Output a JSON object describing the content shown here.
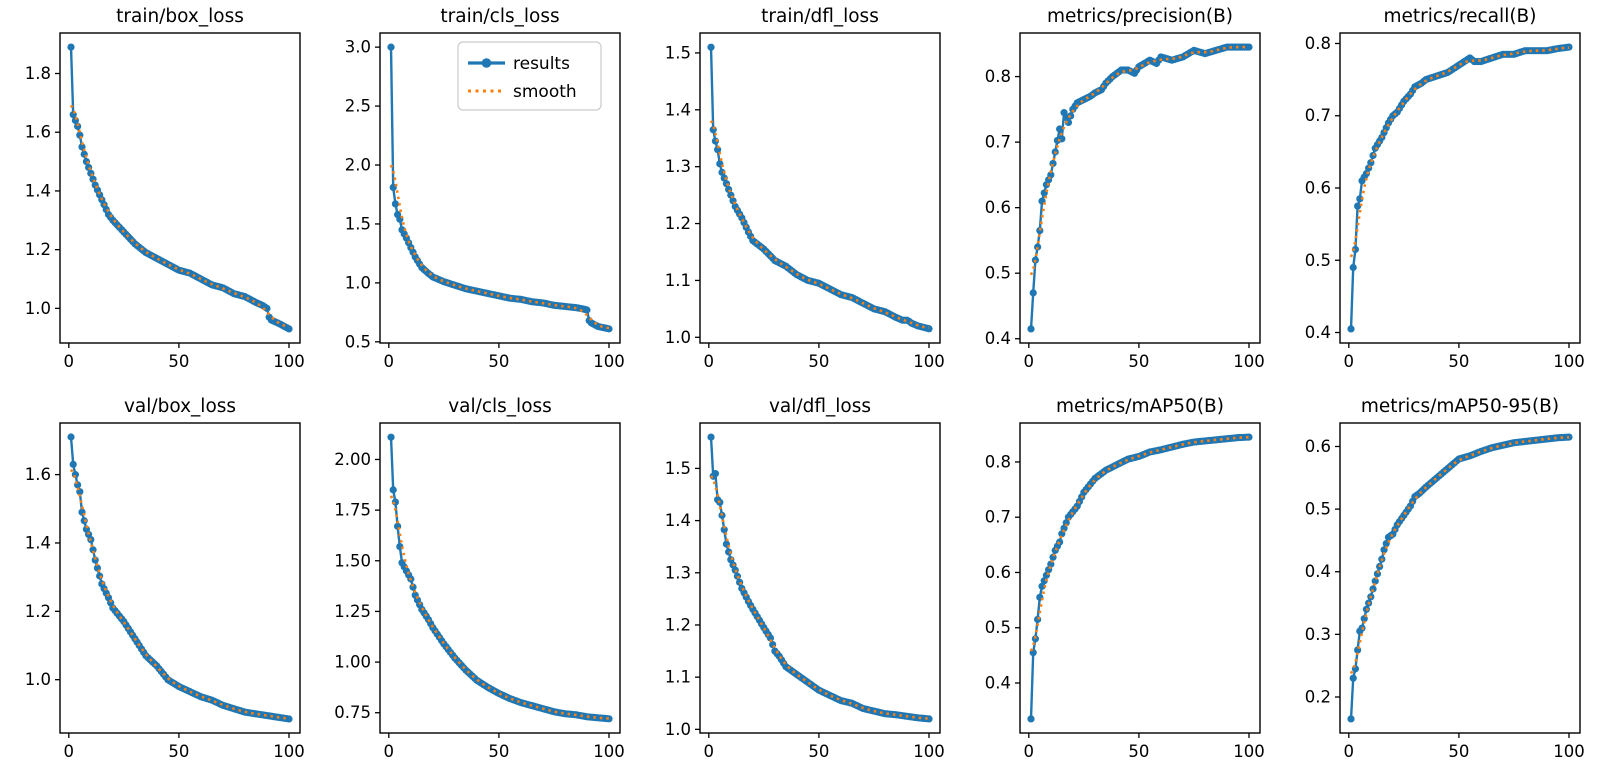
{
  "figure": {
    "background": "#ffffff",
    "results_color": "#1f77b4",
    "smooth_color": "#ff7f0e",
    "spine_color": "#000000",
    "legend": {
      "entries": [
        {
          "label": "results",
          "style": "solid_line_with_circle_marker",
          "color": "#1f77b4"
        },
        {
          "label": "smooth",
          "style": "dotted",
          "color": "#ff7f0e"
        }
      ],
      "position": "upper-right-of-train-cls-loss-subplot"
    }
  },
  "chart_data": [
    {
      "type": "line",
      "title": "train/box_loss",
      "row": 0,
      "col": 0,
      "xlim": [
        -4,
        105
      ],
      "ylim": [
        0.882,
        1.938
      ],
      "xticks": [
        0,
        50,
        100
      ],
      "xtick_labels": [
        "0",
        "50",
        "100"
      ],
      "yticks": [
        1.0,
        1.2,
        1.4,
        1.6,
        1.8
      ],
      "ytick_labels": [
        "1.0",
        "1.2",
        "1.4",
        "1.6",
        "1.8"
      ],
      "legend": false,
      "series": [
        {
          "name": "results",
          "x": [
            1,
            2,
            3,
            4,
            5,
            6,
            8,
            10,
            12,
            15,
            18,
            20,
            25,
            30,
            35,
            40,
            45,
            50,
            55,
            60,
            65,
            70,
            75,
            80,
            85,
            88,
            90,
            91,
            92,
            95,
            100
          ],
          "y": [
            1.89,
            1.66,
            1.64,
            1.62,
            1.59,
            1.55,
            1.5,
            1.46,
            1.42,
            1.37,
            1.32,
            1.3,
            1.26,
            1.22,
            1.19,
            1.17,
            1.15,
            1.13,
            1.12,
            1.1,
            1.08,
            1.07,
            1.05,
            1.04,
            1.02,
            1.01,
            1.0,
            0.97,
            0.96,
            0.95,
            0.93
          ]
        },
        {
          "name": "smooth",
          "derived_from": "results",
          "smoothing": "gaussian_sigma_3"
        }
      ]
    },
    {
      "type": "line",
      "title": "train/cls_loss",
      "row": 0,
      "col": 1,
      "xlim": [
        -4,
        105
      ],
      "ylim": [
        0.49,
        3.12
      ],
      "xticks": [
        0,
        50,
        100
      ],
      "xtick_labels": [
        "0",
        "50",
        "100"
      ],
      "yticks": [
        0.5,
        1.0,
        1.5,
        2.0,
        2.5,
        3.0
      ],
      "ytick_labels": [
        "0.5",
        "1.0",
        "1.5",
        "2.0",
        "2.5",
        "3.0"
      ],
      "legend": true,
      "series": [
        {
          "name": "results",
          "x": [
            1,
            2,
            3,
            4,
            5,
            6,
            8,
            10,
            12,
            15,
            18,
            20,
            25,
            30,
            35,
            40,
            45,
            50,
            55,
            60,
            65,
            70,
            75,
            80,
            85,
            88,
            90,
            91,
            92,
            95,
            100
          ],
          "y": [
            3.0,
            1.81,
            1.67,
            1.58,
            1.54,
            1.45,
            1.38,
            1.3,
            1.22,
            1.13,
            1.08,
            1.05,
            1.01,
            0.98,
            0.95,
            0.93,
            0.91,
            0.89,
            0.87,
            0.86,
            0.84,
            0.83,
            0.81,
            0.8,
            0.79,
            0.78,
            0.77,
            0.68,
            0.66,
            0.63,
            0.61
          ]
        },
        {
          "name": "smooth",
          "derived_from": "results",
          "smoothing": "gaussian_sigma_3"
        }
      ]
    },
    {
      "type": "line",
      "title": "train/dfl_loss",
      "row": 0,
      "col": 2,
      "xlim": [
        -4,
        105
      ],
      "ylim": [
        0.99,
        1.535
      ],
      "xticks": [
        0,
        50,
        100
      ],
      "xtick_labels": [
        "0",
        "50",
        "100"
      ],
      "yticks": [
        1.0,
        1.1,
        1.2,
        1.3,
        1.4,
        1.5
      ],
      "ytick_labels": [
        "1.0",
        "1.1",
        "1.2",
        "1.3",
        "1.4",
        "1.5"
      ],
      "legend": false,
      "series": [
        {
          "name": "results",
          "x": [
            1,
            2,
            3,
            4,
            5,
            6,
            8,
            10,
            12,
            15,
            18,
            20,
            25,
            30,
            35,
            40,
            45,
            50,
            55,
            60,
            65,
            70,
            75,
            80,
            85,
            88,
            90,
            91,
            92,
            95,
            100
          ],
          "y": [
            1.51,
            1.365,
            1.345,
            1.33,
            1.305,
            1.29,
            1.27,
            1.25,
            1.23,
            1.21,
            1.185,
            1.17,
            1.155,
            1.135,
            1.125,
            1.11,
            1.1,
            1.095,
            1.085,
            1.075,
            1.07,
            1.06,
            1.05,
            1.045,
            1.035,
            1.03,
            1.03,
            1.028,
            1.025,
            1.02,
            1.015
          ]
        },
        {
          "name": "smooth",
          "derived_from": "results",
          "smoothing": "gaussian_sigma_3"
        }
      ]
    },
    {
      "type": "line",
      "title": "metrics/precision(B)",
      "row": 0,
      "col": 3,
      "xlim": [
        -4,
        105
      ],
      "ylim": [
        0.3935,
        0.8665
      ],
      "xticks": [
        0,
        50,
        100
      ],
      "xtick_labels": [
        "0",
        "50",
        "100"
      ],
      "yticks": [
        0.4,
        0.5,
        0.6,
        0.7,
        0.8
      ],
      "ytick_labels": [
        "0.4",
        "0.5",
        "0.6",
        "0.7",
        "0.8"
      ],
      "legend": false,
      "series": [
        {
          "name": "results",
          "x": [
            1,
            2,
            3,
            4,
            5,
            6,
            8,
            10,
            12,
            14,
            15,
            16,
            18,
            20,
            22,
            25,
            28,
            30,
            33,
            35,
            38,
            40,
            42,
            45,
            48,
            50,
            55,
            58,
            60,
            65,
            70,
            75,
            80,
            85,
            90,
            95,
            100
          ],
          "y": [
            0.415,
            0.47,
            0.52,
            0.54,
            0.565,
            0.61,
            0.635,
            0.65,
            0.685,
            0.72,
            0.705,
            0.745,
            0.73,
            0.75,
            0.76,
            0.765,
            0.77,
            0.775,
            0.78,
            0.79,
            0.8,
            0.805,
            0.81,
            0.81,
            0.805,
            0.815,
            0.825,
            0.82,
            0.83,
            0.825,
            0.83,
            0.84,
            0.835,
            0.84,
            0.845,
            0.845,
            0.845
          ]
        },
        {
          "name": "smooth",
          "derived_from": "results",
          "smoothing": "gaussian_sigma_3"
        }
      ]
    },
    {
      "type": "line",
      "title": "metrics/recall(B)",
      "row": 0,
      "col": 4,
      "xlim": [
        -4,
        105
      ],
      "ylim": [
        0.3855,
        0.8145
      ],
      "xticks": [
        0,
        50,
        100
      ],
      "xtick_labels": [
        "0",
        "50",
        "100"
      ],
      "yticks": [
        0.4,
        0.5,
        0.6,
        0.7,
        0.8
      ],
      "ytick_labels": [
        "0.4",
        "0.5",
        "0.6",
        "0.7",
        "0.8"
      ],
      "legend": false,
      "series": [
        {
          "name": "results",
          "x": [
            1,
            2,
            3,
            4,
            5,
            6,
            8,
            10,
            12,
            15,
            18,
            20,
            22,
            25,
            28,
            30,
            33,
            35,
            40,
            45,
            50,
            55,
            57,
            60,
            65,
            70,
            75,
            80,
            85,
            90,
            95,
            100
          ],
          "y": [
            0.405,
            0.49,
            0.515,
            0.575,
            0.585,
            0.61,
            0.62,
            0.635,
            0.655,
            0.67,
            0.69,
            0.7,
            0.705,
            0.72,
            0.73,
            0.74,
            0.745,
            0.75,
            0.755,
            0.76,
            0.77,
            0.78,
            0.775,
            0.775,
            0.78,
            0.785,
            0.785,
            0.79,
            0.79,
            0.79,
            0.793,
            0.795
          ]
        },
        {
          "name": "smooth",
          "derived_from": "results",
          "smoothing": "gaussian_sigma_3"
        }
      ]
    },
    {
      "type": "line",
      "title": "val/box_loss",
      "row": 1,
      "col": 0,
      "xlim": [
        -4,
        105
      ],
      "ylim": [
        0.844,
        1.751
      ],
      "xticks": [
        0,
        50,
        100
      ],
      "xtick_labels": [
        "0",
        "50",
        "100"
      ],
      "yticks": [
        1.0,
        1.2,
        1.4,
        1.6
      ],
      "ytick_labels": [
        "1.0",
        "1.2",
        "1.4",
        "1.6"
      ],
      "legend": false,
      "series": [
        {
          "name": "results",
          "x": [
            1,
            2,
            3,
            4,
            5,
            6,
            8,
            10,
            12,
            15,
            18,
            20,
            25,
            30,
            35,
            40,
            45,
            50,
            55,
            60,
            65,
            70,
            75,
            80,
            85,
            90,
            95,
            100
          ],
          "y": [
            1.71,
            1.63,
            1.6,
            1.57,
            1.55,
            1.49,
            1.44,
            1.41,
            1.35,
            1.28,
            1.24,
            1.21,
            1.17,
            1.12,
            1.07,
            1.04,
            1.0,
            0.98,
            0.965,
            0.95,
            0.94,
            0.925,
            0.915,
            0.905,
            0.9,
            0.895,
            0.89,
            0.885
          ]
        },
        {
          "name": "smooth",
          "derived_from": "results",
          "smoothing": "gaussian_sigma_3"
        }
      ]
    },
    {
      "type": "line",
      "title": "val/cls_loss",
      "row": 1,
      "col": 1,
      "xlim": [
        -4,
        105
      ],
      "ylim": [
        0.65,
        2.18
      ],
      "xticks": [
        0,
        50,
        100
      ],
      "xtick_labels": [
        "0",
        "50",
        "100"
      ],
      "yticks": [
        0.75,
        1.0,
        1.25,
        1.5,
        1.75,
        2.0
      ],
      "ytick_labels": [
        "0.75",
        "1.00",
        "1.25",
        "1.50",
        "1.75",
        "2.00"
      ],
      "legend": false,
      "series": [
        {
          "name": "results",
          "x": [
            1,
            2,
            3,
            4,
            5,
            6,
            8,
            10,
            12,
            15,
            18,
            20,
            25,
            30,
            35,
            40,
            45,
            50,
            55,
            60,
            65,
            70,
            75,
            80,
            85,
            90,
            95,
            100
          ],
          "y": [
            2.11,
            1.85,
            1.79,
            1.67,
            1.57,
            1.49,
            1.45,
            1.41,
            1.33,
            1.26,
            1.21,
            1.17,
            1.09,
            1.02,
            0.96,
            0.91,
            0.875,
            0.845,
            0.82,
            0.8,
            0.785,
            0.77,
            0.755,
            0.745,
            0.74,
            0.73,
            0.725,
            0.72
          ]
        },
        {
          "name": "smooth",
          "derived_from": "results",
          "smoothing": "gaussian_sigma_3"
        }
      ]
    },
    {
      "type": "line",
      "title": "val/dfl_loss",
      "row": 1,
      "col": 2,
      "xlim": [
        -4,
        105
      ],
      "ylim": [
        0.993,
        1.587
      ],
      "xticks": [
        0,
        50,
        100
      ],
      "xtick_labels": [
        "0",
        "50",
        "100"
      ],
      "yticks": [
        1.0,
        1.1,
        1.2,
        1.3,
        1.4,
        1.5
      ],
      "ytick_labels": [
        "1.0",
        "1.1",
        "1.2",
        "1.3",
        "1.4",
        "1.5"
      ],
      "legend": false,
      "series": [
        {
          "name": "results",
          "x": [
            1,
            2,
            3,
            4,
            5,
            6,
            8,
            10,
            12,
            15,
            18,
            20,
            25,
            28,
            30,
            32,
            35,
            40,
            45,
            50,
            55,
            60,
            65,
            70,
            75,
            80,
            85,
            90,
            95,
            100
          ],
          "y": [
            1.56,
            1.485,
            1.49,
            1.44,
            1.435,
            1.41,
            1.355,
            1.325,
            1.305,
            1.27,
            1.245,
            1.23,
            1.195,
            1.175,
            1.15,
            1.14,
            1.12,
            1.105,
            1.09,
            1.075,
            1.065,
            1.055,
            1.05,
            1.04,
            1.035,
            1.03,
            1.028,
            1.025,
            1.022,
            1.02
          ]
        },
        {
          "name": "smooth",
          "derived_from": "results",
          "smoothing": "gaussian_sigma_3"
        }
      ]
    },
    {
      "type": "line",
      "title": "metrics/mAP50(B)",
      "row": 1,
      "col": 3,
      "xlim": [
        -4,
        105
      ],
      "ylim": [
        0.3095,
        0.8705
      ],
      "xticks": [
        0,
        50,
        100
      ],
      "xtick_labels": [
        "0",
        "50",
        "100"
      ],
      "yticks": [
        0.4,
        0.5,
        0.6,
        0.7,
        0.8
      ],
      "ytick_labels": [
        "0.4",
        "0.5",
        "0.6",
        "0.7",
        "0.8"
      ],
      "legend": false,
      "series": [
        {
          "name": "results",
          "x": [
            1,
            2,
            3,
            4,
            5,
            6,
            8,
            10,
            12,
            14,
            15,
            16,
            18,
            20,
            22,
            25,
            28,
            30,
            35,
            40,
            45,
            50,
            55,
            60,
            65,
            70,
            75,
            80,
            85,
            90,
            95,
            100
          ],
          "y": [
            0.335,
            0.455,
            0.48,
            0.515,
            0.555,
            0.575,
            0.595,
            0.615,
            0.64,
            0.655,
            0.67,
            0.68,
            0.7,
            0.71,
            0.72,
            0.745,
            0.76,
            0.77,
            0.785,
            0.795,
            0.805,
            0.81,
            0.818,
            0.822,
            0.827,
            0.832,
            0.836,
            0.838,
            0.84,
            0.842,
            0.844,
            0.845
          ]
        },
        {
          "name": "smooth",
          "derived_from": "results",
          "smoothing": "gaussian_sigma_3"
        }
      ]
    },
    {
      "type": "line",
      "title": "metrics/mAP50-95(B)",
      "row": 1,
      "col": 4,
      "xlim": [
        -4,
        105
      ],
      "ylim": [
        0.1425,
        0.6375
      ],
      "xticks": [
        0,
        50,
        100
      ],
      "xtick_labels": [
        "0",
        "50",
        "100"
      ],
      "yticks": [
        0.2,
        0.3,
        0.4,
        0.5,
        0.6
      ],
      "ytick_labels": [
        "0.2",
        "0.3",
        "0.4",
        "0.5",
        "0.6"
      ],
      "legend": false,
      "series": [
        {
          "name": "results",
          "x": [
            1,
            2,
            3,
            4,
            5,
            6,
            8,
            10,
            12,
            15,
            16,
            18,
            20,
            22,
            25,
            28,
            30,
            32,
            35,
            40,
            45,
            50,
            55,
            60,
            65,
            70,
            75,
            80,
            85,
            90,
            95,
            100
          ],
          "y": [
            0.165,
            0.23,
            0.245,
            0.275,
            0.305,
            0.31,
            0.34,
            0.36,
            0.385,
            0.42,
            0.435,
            0.455,
            0.46,
            0.475,
            0.49,
            0.505,
            0.52,
            0.525,
            0.535,
            0.55,
            0.565,
            0.58,
            0.585,
            0.592,
            0.598,
            0.602,
            0.606,
            0.608,
            0.61,
            0.612,
            0.614,
            0.615
          ]
        },
        {
          "name": "smooth",
          "derived_from": "results",
          "smoothing": "gaussian_sigma_3"
        }
      ]
    }
  ]
}
